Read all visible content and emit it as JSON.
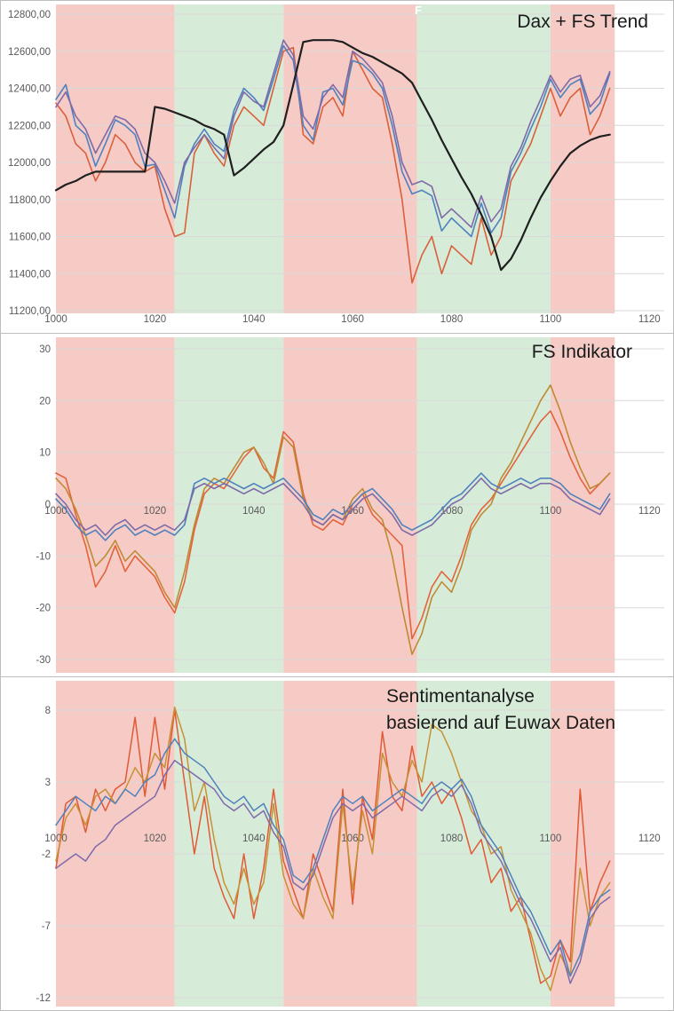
{
  "colors": {
    "band_red": "#f6cbc6",
    "band_green": "#d6ecd9",
    "grid": "#d9d9d9",
    "tick_text": "#595959",
    "title_text": "#1a1a1a",
    "panel_border": "#bdbdbd"
  },
  "overlay": {
    "stray_letter": "F"
  },
  "chart_data": [
    {
      "type": "line",
      "title": "Dax + FS Trend",
      "xlim": [
        1000,
        1123
      ],
      "ylim": [
        11200,
        12800
      ],
      "x_start": 1000,
      "x_step": 2,
      "x_tick_values": [
        1000,
        1020,
        1040,
        1060,
        1080,
        1100,
        1120
      ],
      "x_tick_labels": [
        "1000",
        "1020",
        "1040",
        "1060",
        "1080",
        "1100",
        "1120"
      ],
      "y_tick_values": [
        12800,
        12600,
        12400,
        12200,
        12000,
        11800,
        11600,
        11400,
        11200
      ],
      "y_tick_labels": [
        "12800,00",
        "12600,00",
        "12400,00",
        "12200,00",
        "12000,00",
        "11800,00",
        "11600,00",
        "11400,00",
        "11200,00"
      ],
      "bands": [
        {
          "from": 1000,
          "to": 1024,
          "color": "red"
        },
        {
          "from": 1024,
          "to": 1046,
          "color": "green"
        },
        {
          "from": 1046,
          "to": 1073,
          "color": "red"
        },
        {
          "from": 1073,
          "to": 1100,
          "color": "green"
        },
        {
          "from": 1100,
          "to": 1113,
          "color": "red"
        }
      ],
      "series": [
        {
          "name": "orange",
          "color": "#d9603b",
          "width": 1.6,
          "values": [
            12320,
            12250,
            12100,
            12050,
            11900,
            12000,
            12150,
            12100,
            12000,
            11950,
            11980,
            11750,
            11600,
            11620,
            12050,
            12150,
            12050,
            11980,
            12200,
            12300,
            12250,
            12200,
            12400,
            12600,
            12620,
            12150,
            12100,
            12300,
            12350,
            12250,
            12600,
            12500,
            12400,
            12350,
            12100,
            11800,
            11350,
            11500,
            11600,
            11400,
            11550,
            11500,
            11450,
            11700,
            11500,
            11600,
            11900,
            12000,
            12100,
            12250,
            12400,
            12250,
            12350,
            12400,
            12150,
            12250,
            12400
          ]
        },
        {
          "name": "blue",
          "color": "#4f81bd",
          "width": 1.6,
          "values": [
            12340,
            12420,
            12200,
            12150,
            11980,
            12100,
            12230,
            12200,
            12150,
            11980,
            11990,
            11850,
            11700,
            11980,
            12100,
            12180,
            12100,
            12060,
            12280,
            12400,
            12350,
            12280,
            12450,
            12630,
            12550,
            12200,
            12120,
            12380,
            12400,
            12310,
            12550,
            12530,
            12480,
            12400,
            12200,
            11950,
            11830,
            11850,
            11820,
            11630,
            11700,
            11650,
            11600,
            11780,
            11620,
            11700,
            11950,
            12050,
            12180,
            12300,
            12450,
            12350,
            12420,
            12450,
            12260,
            12320,
            12480
          ]
        },
        {
          "name": "purple",
          "color": "#7f6aa8",
          "width": 1.6,
          "values": [
            12300,
            12380,
            12250,
            12180,
            12050,
            12150,
            12250,
            12230,
            12180,
            12050,
            12000,
            11900,
            11780,
            12000,
            12080,
            12150,
            12080,
            12020,
            12250,
            12380,
            12330,
            12300,
            12480,
            12660,
            12580,
            12250,
            12180,
            12350,
            12420,
            12350,
            12600,
            12560,
            12500,
            12430,
            12250,
            12000,
            11880,
            11900,
            11870,
            11700,
            11750,
            11700,
            11650,
            11820,
            11680,
            11750,
            11980,
            12080,
            12220,
            12340,
            12470,
            12380,
            12450,
            12470,
            12300,
            12360,
            12490
          ]
        },
        {
          "name": "fs-trend-black",
          "color": "#1f1f1f",
          "width": 2.2,
          "values": [
            11850,
            11880,
            11900,
            11930,
            11950,
            11950,
            11950,
            11950,
            11950,
            11950,
            12300,
            12290,
            12270,
            12250,
            12230,
            12200,
            12180,
            12150,
            11930,
            11970,
            12020,
            12070,
            12110,
            12200,
            12420,
            12650,
            12660,
            12660,
            12660,
            12650,
            12620,
            12590,
            12570,
            12540,
            12510,
            12480,
            12430,
            12330,
            12230,
            12120,
            12020,
            11920,
            11830,
            11720,
            11600,
            11420,
            11480,
            11580,
            11700,
            11810,
            11900,
            11980,
            12050,
            12090,
            12120,
            12140,
            12150
          ]
        }
      ]
    },
    {
      "type": "line",
      "title": "FS Indikator",
      "xlim": [
        1000,
        1123
      ],
      "ylim": [
        -30,
        30
      ],
      "x_start": 1000,
      "x_step": 2,
      "x_tick_values": [
        1000,
        1020,
        1040,
        1060,
        1080,
        1100,
        1120
      ],
      "x_tick_labels": [
        "1000",
        "1020",
        "1040",
        "1060",
        "1080",
        "1100",
        "1120"
      ],
      "y_tick_values": [
        30,
        20,
        10,
        0,
        -10,
        -20,
        -30
      ],
      "y_tick_labels": [
        "30",
        "20",
        "10",
        "0",
        "-10",
        "-20",
        "-30"
      ],
      "bands": [
        {
          "from": 1000,
          "to": 1024,
          "color": "red"
        },
        {
          "from": 1024,
          "to": 1046,
          "color": "green"
        },
        {
          "from": 1046,
          "to": 1073,
          "color": "red"
        },
        {
          "from": 1073,
          "to": 1100,
          "color": "green"
        },
        {
          "from": 1100,
          "to": 1113,
          "color": "red"
        }
      ],
      "series": [
        {
          "name": "orange",
          "color": "#e2633c",
          "width": 1.6,
          "values": [
            6,
            5,
            -2,
            -8,
            -16,
            -13,
            -8,
            -13,
            -10,
            -12,
            -14,
            -18,
            -21,
            -15,
            -5,
            2,
            4,
            3,
            6,
            9,
            11,
            7,
            5,
            14,
            12,
            2,
            -4,
            -5,
            -3,
            -4,
            0,
            2,
            -2,
            -4,
            -6,
            -8,
            -26,
            -22,
            -16,
            -13,
            -15,
            -10,
            -4,
            -1,
            1,
            4,
            7,
            10,
            13,
            16,
            18,
            14,
            9,
            5,
            2,
            4,
            6
          ]
        },
        {
          "name": "gold",
          "color": "#bf8a33",
          "width": 1.6,
          "values": [
            5,
            3,
            -1,
            -6,
            -12,
            -10,
            -7,
            -11,
            -9,
            -11,
            -13,
            -17,
            -20,
            -13,
            -4,
            3,
            5,
            4,
            7,
            10,
            11,
            8,
            4,
            13,
            11,
            1,
            -3,
            -4,
            -2,
            -3,
            1,
            3,
            -1,
            -3,
            -10,
            -20,
            -29,
            -25,
            -18,
            -15,
            -17,
            -12,
            -5,
            -2,
            0,
            5,
            8,
            12,
            16,
            20,
            23,
            18,
            12,
            7,
            3,
            4,
            6
          ]
        },
        {
          "name": "blue",
          "color": "#4f81bd",
          "width": 1.6,
          "values": [
            1,
            -1,
            -4,
            -6,
            -5,
            -7,
            -5,
            -4,
            -6,
            -5,
            -6,
            -5,
            -6,
            -4,
            4,
            5,
            4,
            5,
            4,
            3,
            4,
            3,
            4,
            5,
            3,
            1,
            -2,
            -3,
            -1,
            -2,
            0,
            2,
            3,
            1,
            -1,
            -4,
            -5,
            -4,
            -3,
            -1,
            1,
            2,
            4,
            6,
            4,
            3,
            4,
            5,
            4,
            5,
            5,
            4,
            2,
            1,
            0,
            -1,
            2
          ]
        },
        {
          "name": "purple",
          "color": "#7f6aa8",
          "width": 1.6,
          "values": [
            2,
            0,
            -3,
            -5,
            -4,
            -6,
            -4,
            -3,
            -5,
            -4,
            -5,
            -4,
            -5,
            -3,
            3,
            4,
            3,
            4,
            3,
            2,
            3,
            2,
            3,
            4,
            2,
            0,
            -3,
            -4,
            -2,
            -3,
            -1,
            1,
            2,
            0,
            -2,
            -5,
            -6,
            -5,
            -4,
            -2,
            0,
            1,
            3,
            5,
            3,
            2,
            3,
            4,
            3,
            4,
            4,
            3,
            1,
            0,
            -1,
            -2,
            1
          ]
        }
      ]
    },
    {
      "type": "line",
      "title": "Sentimentanalyse\nbasierend auf Euwax Daten",
      "xlim": [
        1000,
        1123
      ],
      "ylim": [
        -12,
        8
      ],
      "x_start": 1000,
      "x_step": 2,
      "x_tick_values": [
        1000,
        1020,
        1040,
        1060,
        1080,
        1100,
        1120
      ],
      "x_tick_labels": [
        "1000",
        "1020",
        "1040",
        "1060",
        "1080",
        "1100",
        "1120"
      ],
      "y_tick_values": [
        8,
        3,
        -2,
        -7,
        -12
      ],
      "y_tick_labels": [
        "8",
        "3",
        "-2",
        "-7",
        "-12"
      ],
      "bands": [
        {
          "from": 1000,
          "to": 1024,
          "color": "red"
        },
        {
          "from": 1024,
          "to": 1046,
          "color": "green"
        },
        {
          "from": 1046,
          "to": 1073,
          "color": "red"
        },
        {
          "from": 1073,
          "to": 1100,
          "color": "green"
        },
        {
          "from": 1100,
          "to": 1113,
          "color": "red"
        }
      ],
      "series": [
        {
          "name": "red",
          "color": "#e05a35",
          "width": 1.5,
          "values": [
            -3,
            1.5,
            2,
            -0.5,
            2.5,
            1,
            2.5,
            3,
            7.5,
            2,
            7.5,
            2.5,
            8,
            3,
            -2,
            2,
            -3,
            -5,
            -6.5,
            -2,
            -6.5,
            -3,
            2.5,
            -2.5,
            -4.5,
            -6.5,
            -2,
            -4,
            -6,
            2.5,
            -5.5,
            2,
            -1,
            6.5,
            2,
            1,
            5.5,
            2,
            3,
            1.5,
            2.5,
            0.5,
            -2,
            -1,
            -4,
            -3,
            -6,
            -5,
            -8,
            -11,
            -10.5,
            -8,
            -9.5,
            2.5,
            -6,
            -4,
            -2.5
          ]
        },
        {
          "name": "gold",
          "color": "#c79136",
          "width": 1.5,
          "values": [
            -2.5,
            0.5,
            1.5,
            0,
            2,
            2.5,
            1.5,
            2.5,
            4,
            3,
            5,
            4,
            8.2,
            6,
            1,
            3,
            -1,
            -4,
            -5.5,
            -3,
            -5.5,
            -4,
            1.5,
            -3.5,
            -5.5,
            -6.5,
            -3,
            -5,
            -6.5,
            1.5,
            -4.5,
            1,
            -2,
            5,
            3,
            2,
            4.5,
            3,
            7,
            6.5,
            5,
            3,
            1,
            0,
            -2,
            -1.5,
            -4.5,
            -6,
            -7.5,
            -10,
            -11.5,
            -9,
            -10.5,
            -3,
            -7,
            -5,
            -4
          ]
        },
        {
          "name": "blue",
          "color": "#4f81bd",
          "width": 1.5,
          "values": [
            0,
            1,
            2,
            1.5,
            1,
            2,
            1.5,
            2.5,
            2,
            3,
            3.5,
            5,
            6,
            5,
            4.5,
            4,
            3,
            2,
            1.5,
            2,
            1,
            1.5,
            0,
            -1,
            -3.5,
            -4,
            -3,
            -1,
            1,
            2,
            1.5,
            2,
            1,
            1.5,
            2,
            2.5,
            2,
            1.5,
            2.5,
            3,
            2.5,
            3.2,
            2,
            0,
            -1,
            -2,
            -3.5,
            -5,
            -6,
            -7.5,
            -9,
            -8,
            -10.5,
            -9,
            -6,
            -5,
            -4.5
          ]
        },
        {
          "name": "purple",
          "color": "#7f6aa8",
          "width": 1.5,
          "values": [
            -3,
            -2.5,
            -2,
            -2.5,
            -1.5,
            -1,
            0,
            0.5,
            1,
            1.5,
            2,
            3.5,
            4.5,
            4,
            3.5,
            3,
            2.5,
            1.5,
            1,
            1.5,
            0.5,
            1,
            -0.5,
            -1.5,
            -4,
            -4.5,
            -3.5,
            -1.5,
            0.5,
            1.5,
            1,
            1.5,
            0.5,
            1,
            1.5,
            2,
            1.5,
            1,
            2,
            2.5,
            2,
            2.8,
            1.5,
            -0.5,
            -1.5,
            -2.5,
            -4,
            -5.5,
            -6.5,
            -8,
            -9.5,
            -8.5,
            -11,
            -9.5,
            -6.5,
            -5.5,
            -5
          ]
        }
      ]
    }
  ]
}
